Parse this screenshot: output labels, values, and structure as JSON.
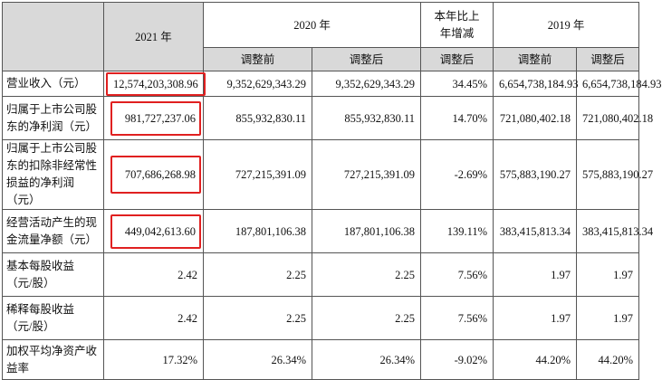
{
  "header": {
    "col2021": "2021 年",
    "col2020": "2020 年",
    "col_yoy": "本年比上年增减",
    "col2019": "2019 年",
    "sub_before": "调整前",
    "sub_after": "调整后",
    "sub_yoy": "调整后",
    "sub2019_before": "调整前",
    "sub2019_after": "调整后"
  },
  "rows": [
    {
      "label": "营业收入（元）",
      "v2021": "12,574,203,308.96",
      "v2020_before": "9,352,629,343.29",
      "v2020_after": "9,352,629,343.29",
      "yoy": "34.45%",
      "v2019_before": "6,654,738,184.93",
      "v2019_after": "6,654,738,184.93"
    },
    {
      "label": "归属于上市公司股东的净利润（元）",
      "v2021": "981,727,237.06",
      "v2020_before": "855,932,830.11",
      "v2020_after": "855,932,830.11",
      "yoy": "14.70%",
      "v2019_before": "721,080,402.18",
      "v2019_after": "721,080,402.18"
    },
    {
      "label": "归属于上市公司股东的扣除非经常性损益的净利润（元）",
      "v2021": "707,686,268.98",
      "v2020_before": "727,215,391.09",
      "v2020_after": "727,215,391.09",
      "yoy": "-2.69%",
      "v2019_before": "575,883,190.27",
      "v2019_after": "575,883,190.27"
    },
    {
      "label": "经营活动产生的现金流量净额（元）",
      "v2021": "449,042,613.60",
      "v2020_before": "187,801,106.38",
      "v2020_after": "187,801,106.38",
      "yoy": "139.11%",
      "v2019_before": "383,415,813.34",
      "v2019_after": "383,415,813.34"
    },
    {
      "label": "基本每股收益（元/股）",
      "v2021": "2.42",
      "v2020_before": "2.25",
      "v2020_after": "2.25",
      "yoy": "7.56%",
      "v2019_before": "1.97",
      "v2019_after": "1.97"
    },
    {
      "label": "稀释每股收益（元/股）",
      "v2021": "2.42",
      "v2020_before": "2.25",
      "v2020_after": "2.25",
      "yoy": "7.56%",
      "v2019_before": "1.97",
      "v2019_after": "1.97"
    },
    {
      "label": "加权平均净资产收益率",
      "v2021": "17.32%",
      "v2020_before": "26.34%",
      "v2020_after": "26.34%",
      "yoy": "-9.02%",
      "v2019_before": "44.20%",
      "v2019_after": "44.20%"
    }
  ],
  "colors": {
    "highlight_border": "#e02020",
    "header_shade": "#d9d9d9"
  }
}
